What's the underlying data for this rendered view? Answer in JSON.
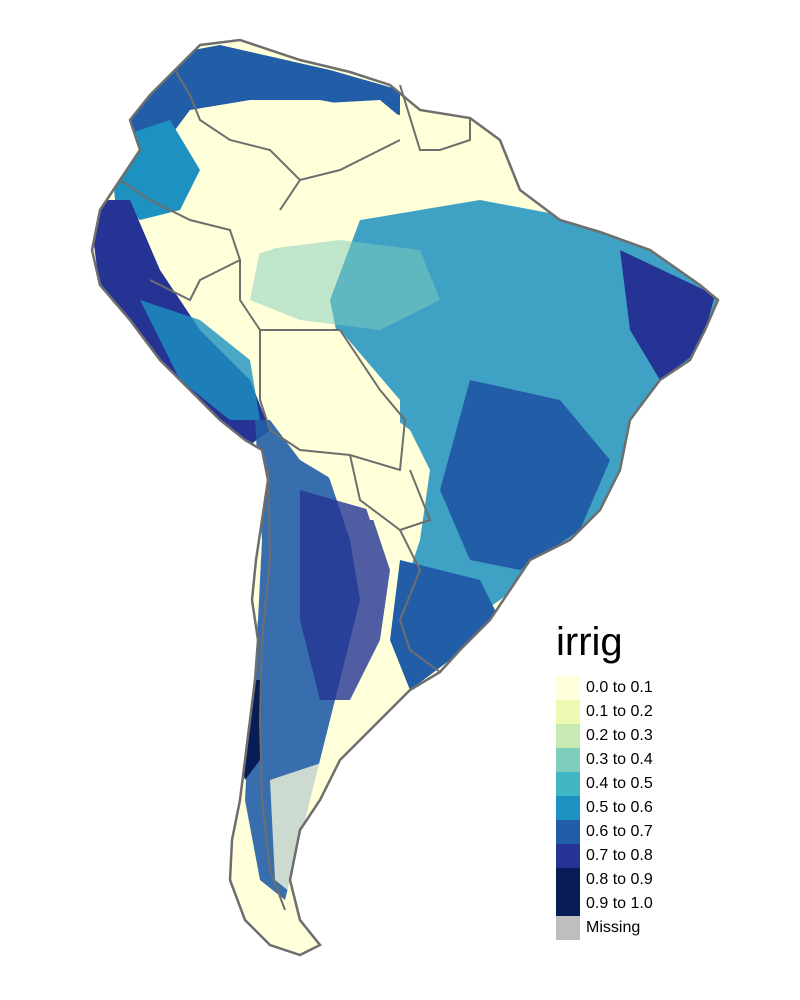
{
  "legend": {
    "title": "irrig",
    "items": [
      {
        "label": "0.0 to 0.1",
        "color": "#FFFFD9"
      },
      {
        "label": "0.1 to 0.2",
        "color": "#EDF8B1"
      },
      {
        "label": "0.2 to 0.3",
        "color": "#C7E9B4"
      },
      {
        "label": "0.3 to 0.4",
        "color": "#7FCDBB"
      },
      {
        "label": "0.4 to 0.5",
        "color": "#41B6C4"
      },
      {
        "label": "0.5 to 0.6",
        "color": "#1D91C0"
      },
      {
        "label": "0.6 to 0.7",
        "color": "#225EA8"
      },
      {
        "label": "0.7 to 0.8",
        "color": "#253494"
      },
      {
        "label": "0.8 to 0.9",
        "color": "#081D58"
      },
      {
        "label": "0.9 to 1.0",
        "color": "#081D58"
      },
      {
        "label": "Missing",
        "color": "#BEBEBE"
      }
    ]
  },
  "map": {
    "border_color": "#6E6E6E",
    "land_color": "#FFFFD9"
  }
}
